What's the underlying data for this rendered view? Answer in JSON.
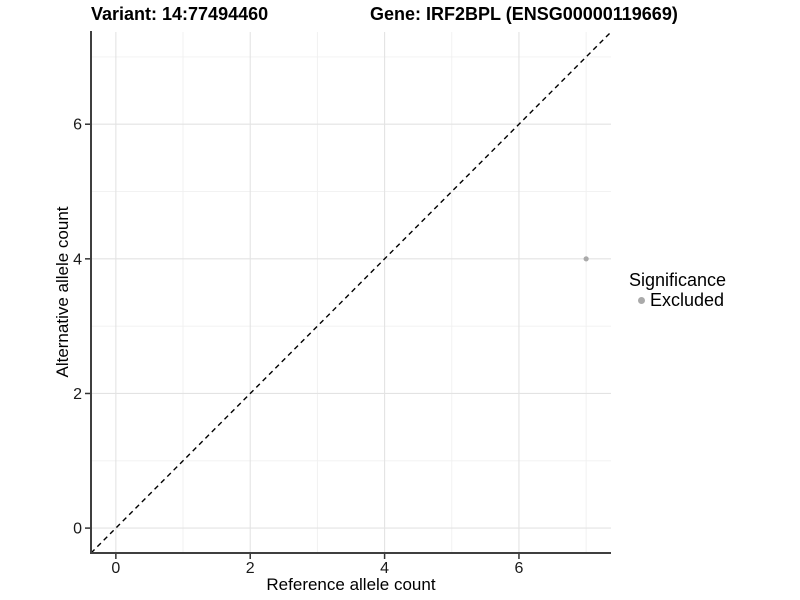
{
  "chart_data": {
    "type": "scatter",
    "title_left": "Variant: 14:77494460",
    "title_right": "Gene: IRF2BPL (ENSG00000119669)",
    "xlabel": "Reference allele count",
    "ylabel": "Alternative allele count",
    "xlim": [
      -0.37,
      7.37
    ],
    "ylim": [
      -0.37,
      7.37
    ],
    "x_ticks": [
      0,
      2,
      4,
      6
    ],
    "y_ticks": [
      0,
      2,
      4,
      6
    ],
    "x_minor_gridlines": [
      1,
      3,
      5,
      7
    ],
    "y_minor_gridlines": [
      1,
      3,
      5,
      7
    ],
    "grid": "major and minor gridlines, light gray, on white panel",
    "reference_line": {
      "type": "identity y=x",
      "style": "dashed",
      "color": "#000000"
    },
    "legend": {
      "title": "Significance",
      "position": "right",
      "items": [
        {
          "label": "Excluded",
          "color": "#aaaaaa",
          "marker": "circle"
        }
      ]
    },
    "series": [
      {
        "name": "Excluded",
        "color": "#aaaaaa",
        "points": [
          {
            "x": 7,
            "y": 4
          }
        ]
      }
    ]
  },
  "colors": {
    "background": "#ffffff",
    "grid_major": "#e3e3e3",
    "grid_minor": "#f0f0f0",
    "axis_line": "#3f3f3f",
    "tick_mark": "#333333",
    "tick_label": "#1a1a1a",
    "title_text": "#000000",
    "point": "#aaaaaa",
    "identity_line": "#000000"
  }
}
